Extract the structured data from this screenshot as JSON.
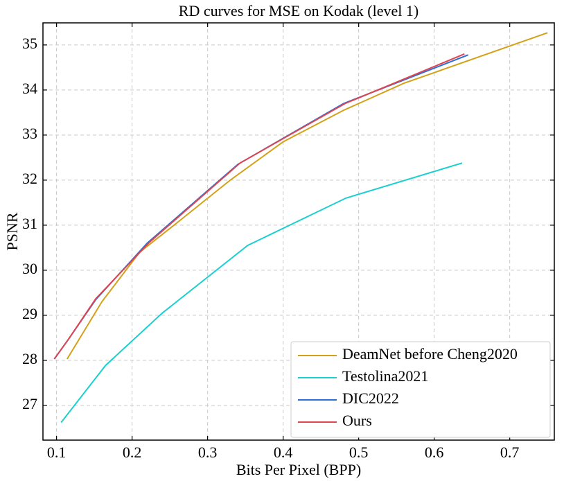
{
  "chart_data": {
    "type": "line",
    "title": "RD curves for MSE on Kodak (level 1)",
    "x_label": "Bits Per Pixel (BPP)",
    "y_label": "PSNR",
    "xlim": [
      0.082,
      0.759
    ],
    "ylim": [
      26.23,
      35.49
    ],
    "xticks": [
      0.1,
      0.2,
      0.3,
      0.4,
      0.5,
      0.6,
      0.7
    ],
    "yticks": [
      27,
      28,
      29,
      30,
      31,
      32,
      33,
      34,
      35
    ],
    "grid": true,
    "legend": "lower right",
    "series": [
      {
        "name": "DeamNet before Cheng2020",
        "color": "#d4a017",
        "x": [
          0.114,
          0.16,
          0.21,
          0.263,
          0.33,
          0.4,
          0.48,
          0.56,
          0.75
        ],
        "values": [
          28.03,
          29.3,
          30.4,
          31.1,
          32.0,
          32.85,
          33.55,
          34.15,
          35.27
        ]
      },
      {
        "name": "Testolina2021",
        "color": "#1ccfcf",
        "x": [
          0.106,
          0.165,
          0.24,
          0.353,
          0.483,
          0.637
        ],
        "values": [
          26.62,
          27.89,
          29.05,
          30.55,
          31.6,
          32.38
        ]
      },
      {
        "name": "DIC2022",
        "color": "#2a6fd6",
        "x": [
          0.097,
          0.115,
          0.152,
          0.22,
          0.34,
          0.48,
          0.645
        ],
        "values": [
          28.03,
          28.45,
          29.35,
          30.6,
          32.35,
          33.7,
          34.78
        ]
      },
      {
        "name": "Ours",
        "color": "#e0454f",
        "x": [
          0.097,
          0.115,
          0.152,
          0.223,
          0.343,
          0.482,
          0.64
        ],
        "values": [
          28.03,
          28.45,
          29.37,
          30.62,
          32.38,
          33.7,
          34.8
        ]
      }
    ]
  }
}
